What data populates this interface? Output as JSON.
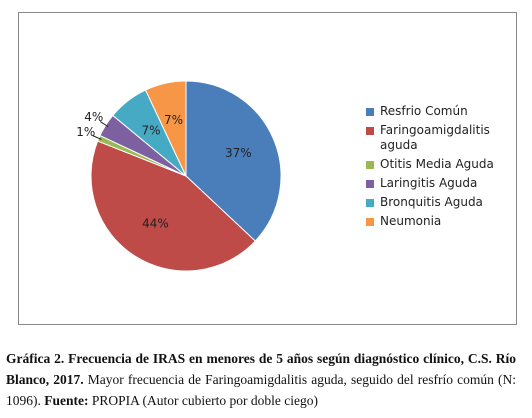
{
  "chart_data": {
    "type": "pie",
    "categories": [
      "Resfrio Común",
      "Faringoamigdalitis aguda",
      "Otitis Media Aguda",
      "Laringitis Aguda",
      "Bronquitis Aguda",
      "Neumonia"
    ],
    "values": [
      37,
      44,
      1,
      4,
      7,
      7
    ],
    "value_labels": [
      "37%",
      "44%",
      "1%",
      "4%",
      "7%",
      "7%"
    ],
    "colors": [
      "#4a7ebb",
      "#be4b48",
      "#98b954",
      "#7d60a0",
      "#46aac5",
      "#f79646"
    ],
    "legend": "right"
  },
  "caption": {
    "parts": [
      {
        "text": "Gráfica 2. Frecuencia de IRAS en menores de 5 años según diagnóstico clínico, C.S. Río Blanco, 2017.",
        "bold": true
      },
      {
        "text": " Mayor frecuencia de Faringoamigdalitis aguda, seguido del resfrío común (N: 1096). ",
        "bold": false
      },
      {
        "text": "Fuente:",
        "bold": true
      },
      {
        "text": " PROPIA (Autor cubierto por doble ciego)",
        "bold": false
      }
    ]
  }
}
